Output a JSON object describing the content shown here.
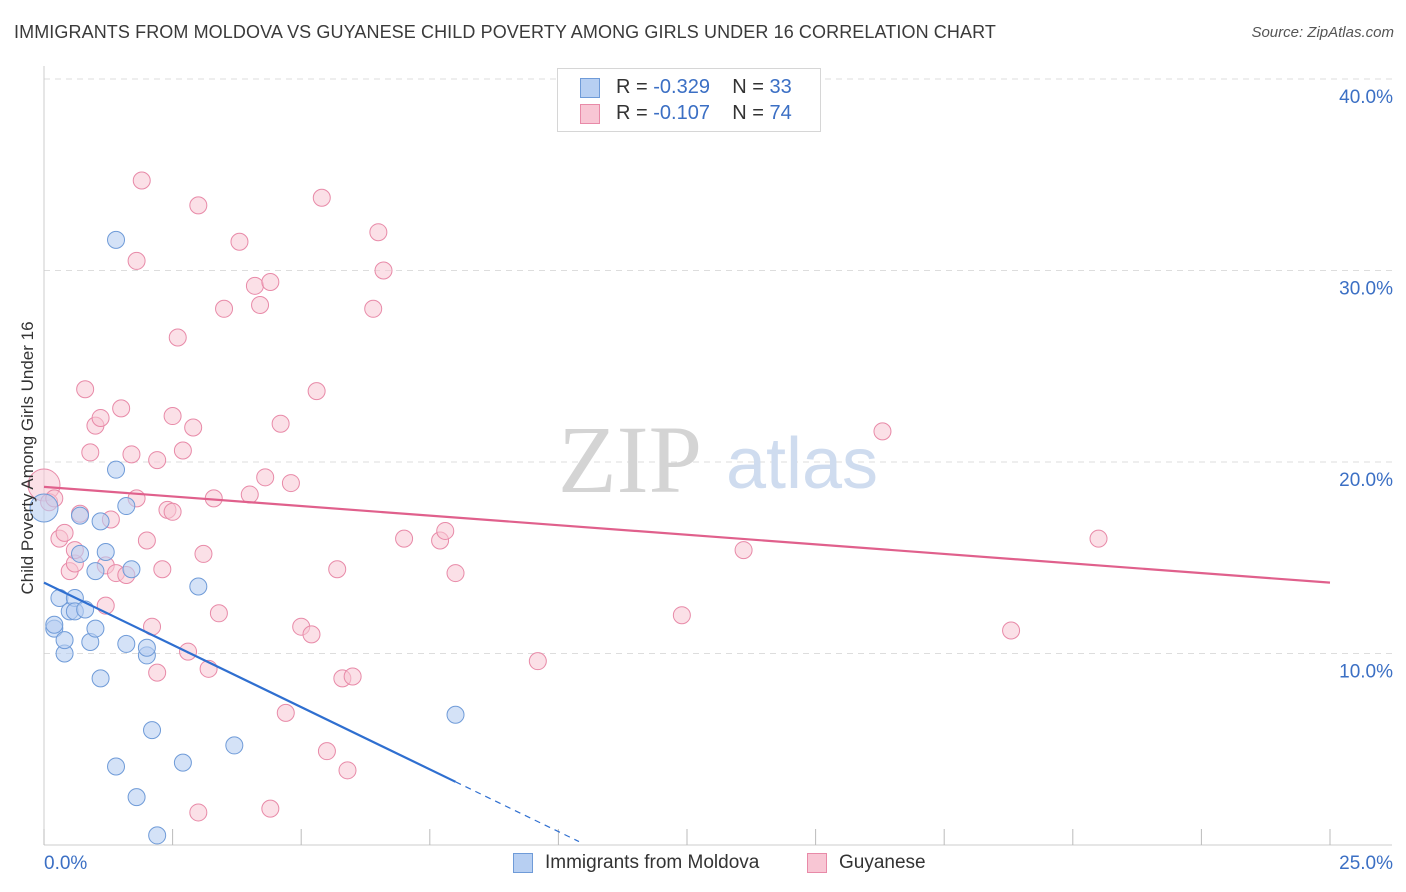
{
  "title": "IMMIGRANTS FROM MOLDOVA VS GUYANESE CHILD POVERTY AMONG GIRLS UNDER 16 CORRELATION CHART",
  "source": "Source: ZipAtlas.com",
  "watermark": {
    "zip": "ZIP",
    "atlas": "atlas"
  },
  "legend_stats": [
    {
      "r_label": "R =",
      "r_value": "-0.329",
      "n_label": "N =",
      "n_value": "33"
    },
    {
      "r_label": "R =",
      "r_value": "-0.107",
      "n_label": "N =",
      "n_value": "74"
    }
  ],
  "colors": {
    "moldova_fill": "#b7cff2",
    "moldova_stroke": "#6f9bd8",
    "moldova_line": "#2f6fd0",
    "guyanese_fill": "#f8c6d4",
    "guyanese_stroke": "#e88aa8",
    "guyanese_line": "#e0608c",
    "tick_label": "#3b6fc4",
    "grid": "#dddddd"
  },
  "chart_data": {
    "type": "scatter",
    "xlabel": "",
    "ylabel": "Child Poverty Among Girls Under 16",
    "xlim": [
      0,
      25
    ],
    "ylim": [
      0,
      40
    ],
    "x_tick_labels": [
      "0.0%",
      "25.0%"
    ],
    "y_ticks": [
      10,
      20,
      30,
      40
    ],
    "y_tick_labels": [
      "10.0%",
      "20.0%",
      "30.0%",
      "40.0%"
    ],
    "grid": true,
    "series": [
      {
        "name": "Immigrants from Moldova",
        "r": -0.329,
        "n": 33,
        "trend": {
          "x0": 0.0,
          "y0": 13.7,
          "x1": 8.0,
          "y1": 3.3,
          "dash_to_x": 10.4
        },
        "points": [
          [
            0.0,
            17.6
          ],
          [
            0.2,
            11.3
          ],
          [
            0.2,
            11.5
          ],
          [
            0.3,
            12.9
          ],
          [
            0.4,
            10.0
          ],
          [
            0.4,
            10.7
          ],
          [
            0.5,
            12.2
          ],
          [
            0.6,
            12.9
          ],
          [
            0.6,
            12.2
          ],
          [
            0.7,
            17.2
          ],
          [
            0.7,
            15.2
          ],
          [
            0.8,
            12.3
          ],
          [
            0.9,
            10.6
          ],
          [
            1.0,
            11.3
          ],
          [
            1.0,
            14.3
          ],
          [
            1.1,
            8.7
          ],
          [
            1.1,
            16.9
          ],
          [
            1.2,
            15.3
          ],
          [
            1.4,
            31.6
          ],
          [
            1.4,
            4.1
          ],
          [
            1.4,
            19.6
          ],
          [
            1.6,
            17.7
          ],
          [
            1.6,
            10.5
          ],
          [
            1.7,
            14.4
          ],
          [
            1.8,
            2.5
          ],
          [
            2.0,
            9.9
          ],
          [
            2.0,
            10.3
          ],
          [
            2.1,
            6.0
          ],
          [
            2.2,
            0.5
          ],
          [
            2.7,
            4.3
          ],
          [
            3.0,
            13.5
          ],
          [
            3.7,
            5.2
          ],
          [
            8.0,
            6.8
          ]
        ]
      },
      {
        "name": "Guyanese",
        "r": -0.107,
        "n": 74,
        "trend": {
          "x0": 0.0,
          "y0": 18.7,
          "x1": 25.0,
          "y1": 13.7
        },
        "points": [
          [
            0.0,
            18.8
          ],
          [
            0.1,
            17.9
          ],
          [
            0.2,
            18.1
          ],
          [
            0.3,
            16.0
          ],
          [
            0.4,
            16.3
          ],
          [
            0.5,
            14.3
          ],
          [
            0.6,
            14.7
          ],
          [
            0.6,
            15.4
          ],
          [
            0.7,
            17.3
          ],
          [
            0.8,
            23.8
          ],
          [
            0.9,
            20.5
          ],
          [
            1.0,
            21.9
          ],
          [
            1.1,
            22.3
          ],
          [
            1.2,
            14.6
          ],
          [
            1.2,
            12.5
          ],
          [
            1.3,
            17.0
          ],
          [
            1.4,
            14.2
          ],
          [
            1.5,
            22.8
          ],
          [
            1.6,
            14.1
          ],
          [
            1.7,
            20.4
          ],
          [
            1.8,
            30.5
          ],
          [
            1.8,
            18.1
          ],
          [
            1.9,
            34.7
          ],
          [
            2.0,
            15.9
          ],
          [
            2.1,
            11.4
          ],
          [
            2.2,
            20.1
          ],
          [
            2.2,
            9.0
          ],
          [
            2.3,
            14.4
          ],
          [
            2.4,
            17.5
          ],
          [
            2.5,
            17.4
          ],
          [
            2.5,
            22.4
          ],
          [
            2.6,
            26.5
          ],
          [
            2.7,
            20.6
          ],
          [
            2.8,
            10.1
          ],
          [
            2.9,
            21.8
          ],
          [
            3.0,
            33.4
          ],
          [
            3.0,
            1.7
          ],
          [
            3.1,
            15.2
          ],
          [
            3.2,
            9.2
          ],
          [
            3.3,
            18.1
          ],
          [
            3.4,
            12.1
          ],
          [
            3.5,
            28.0
          ],
          [
            3.8,
            31.5
          ],
          [
            4.0,
            18.3
          ],
          [
            4.1,
            29.2
          ],
          [
            4.2,
            28.2
          ],
          [
            4.3,
            19.2
          ],
          [
            4.4,
            29.4
          ],
          [
            4.4,
            1.9
          ],
          [
            4.6,
            22.0
          ],
          [
            4.7,
            6.9
          ],
          [
            4.8,
            18.9
          ],
          [
            5.0,
            11.4
          ],
          [
            5.2,
            11.0
          ],
          [
            5.3,
            23.7
          ],
          [
            5.4,
            33.8
          ],
          [
            5.5,
            4.9
          ],
          [
            5.7,
            14.4
          ],
          [
            5.8,
            8.7
          ],
          [
            5.9,
            3.9
          ],
          [
            6.0,
            8.8
          ],
          [
            6.4,
            28.0
          ],
          [
            6.5,
            32.0
          ],
          [
            6.6,
            30.0
          ],
          [
            7.0,
            16.0
          ],
          [
            7.7,
            15.9
          ],
          [
            7.8,
            16.4
          ],
          [
            8.0,
            14.2
          ],
          [
            9.6,
            9.6
          ],
          [
            12.4,
            12.0
          ],
          [
            13.6,
            15.4
          ],
          [
            16.3,
            21.6
          ],
          [
            18.8,
            11.2
          ],
          [
            20.5,
            16.0
          ]
        ]
      }
    ]
  }
}
